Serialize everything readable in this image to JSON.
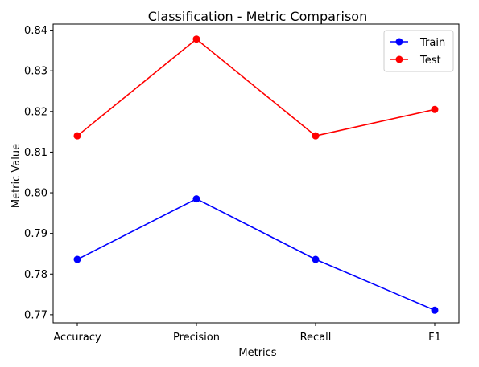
{
  "chart_data": {
    "type": "line",
    "title": "Classification - Metric Comparison",
    "xlabel": "Metrics",
    "ylabel": "Metric Value",
    "categories": [
      "Accuracy",
      "Precision",
      "Recall",
      "F1"
    ],
    "ylim": [
      0.768,
      0.8415
    ],
    "yticks": [
      0.77,
      0.78,
      0.79,
      0.8,
      0.81,
      0.82,
      0.83,
      0.84
    ],
    "ytick_labels": [
      "0.77",
      "0.78",
      "0.79",
      "0.80",
      "0.81",
      "0.82",
      "0.83",
      "0.84"
    ],
    "grid": false,
    "legend_position": "top-right",
    "series": [
      {
        "name": "Train",
        "color": "#0000ff",
        "marker": "circle",
        "values": [
          0.7836,
          0.7985,
          0.7836,
          0.7711
        ]
      },
      {
        "name": "Test",
        "color": "#ff0000",
        "marker": "circle",
        "values": [
          0.814,
          0.8378,
          0.814,
          0.8205
        ]
      }
    ]
  }
}
